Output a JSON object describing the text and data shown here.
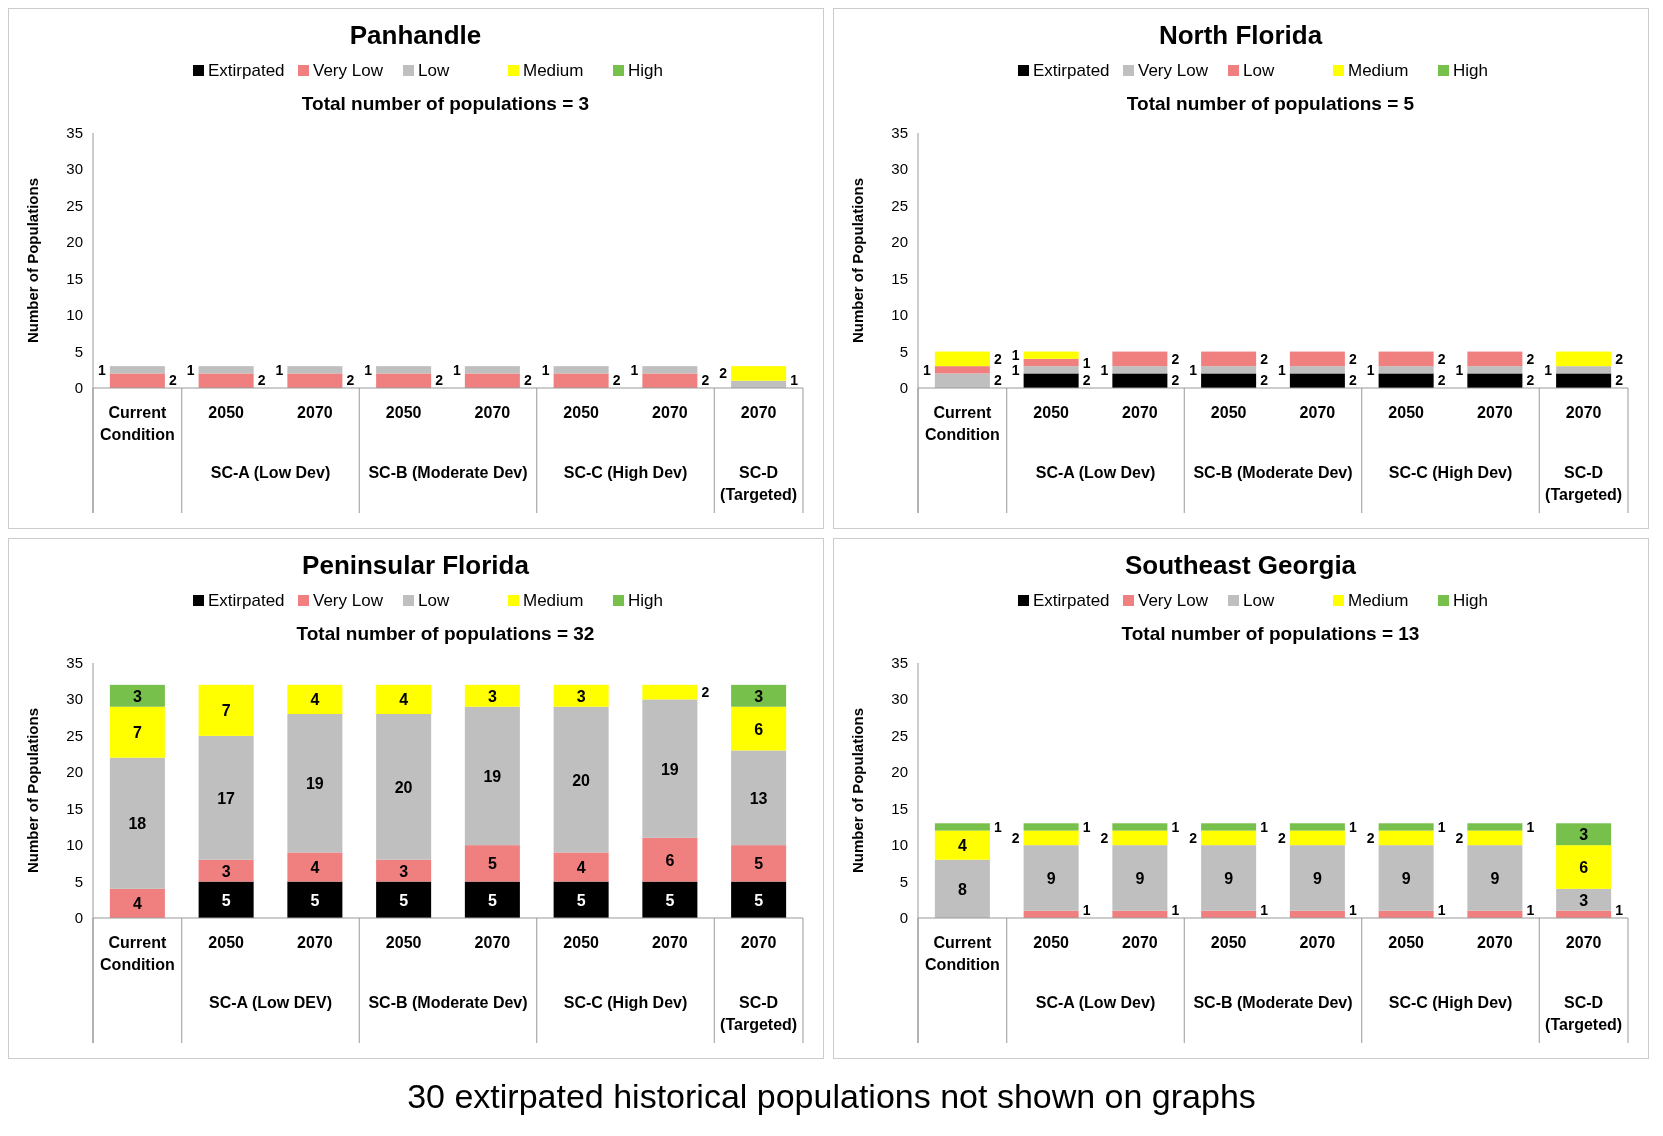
{
  "chart_data": [
    {
      "type": "bar",
      "title": "Panhandle",
      "subtitle": "Total number of populations = 3",
      "ylabel": "Number of Populations",
      "stacked": true,
      "data_labels": true,
      "legend": "top",
      "grid": false,
      "ylim": [
        0,
        35
      ],
      "yticks": [
        0,
        5,
        10,
        15,
        20,
        25,
        30,
        35
      ],
      "categories": [
        "Current Condition",
        "2050",
        "2070",
        "2050",
        "2070",
        "2050",
        "2070",
        "2070"
      ],
      "annotations": [
        "SC-A (Low Dev)",
        "SC-B (Moderate Dev)",
        "SC-C (High Dev)",
        "SC-D (Targeted)"
      ],
      "series": [
        {
          "name": "Extirpated",
          "color": "#000000",
          "values": [
            null,
            null,
            null,
            null,
            null,
            null,
            null,
            null
          ]
        },
        {
          "name": "Very Low",
          "color": "#f08080",
          "values": [
            2,
            2,
            2,
            2,
            2,
            2,
            2,
            null
          ]
        },
        {
          "name": "Low",
          "color": "#bfbfbf",
          "values": [
            1,
            1,
            1,
            1,
            1,
            1,
            1,
            1
          ]
        },
        {
          "name": "Medium",
          "color": "#ffff00",
          "values": [
            null,
            null,
            null,
            null,
            null,
            null,
            null,
            2
          ]
        },
        {
          "name": "High",
          "color": "#77c04b",
          "values": [
            null,
            null,
            null,
            null,
            null,
            null,
            null,
            null
          ]
        }
      ]
    },
    {
      "type": "bar",
      "title": "North Florida",
      "subtitle": "Total number of populations = 5",
      "ylabel": "Number of Populations",
      "stacked": true,
      "data_labels": true,
      "legend": "top",
      "grid": false,
      "ylim": [
        0,
        35
      ],
      "yticks": [
        0,
        5,
        10,
        15,
        20,
        25,
        30,
        35
      ],
      "categories": [
        "Current Condition",
        "2050",
        "2070",
        "2050",
        "2070",
        "2050",
        "2070",
        "2070"
      ],
      "annotations": [
        "SC-A (Low Dev)",
        "SC-B (Moderate Dev)",
        "SC-C (High Dev)",
        "SC-D (Targeted)"
      ],
      "series": [
        {
          "name": "Extirpated",
          "color": "#000000",
          "values": [
            null,
            2,
            2,
            2,
            2,
            2,
            2,
            2
          ]
        },
        {
          "name": "Very Low",
          "color": "#bfbfbf",
          "values": [
            2,
            1,
            1,
            1,
            1,
            1,
            1,
            1
          ]
        },
        {
          "name": "Low",
          "color": "#f08080",
          "values": [
            1,
            1,
            2,
            2,
            2,
            2,
            2,
            null
          ]
        },
        {
          "name": "Medium",
          "color": "#ffff00",
          "values": [
            2,
            1,
            null,
            null,
            null,
            null,
            null,
            2
          ]
        },
        {
          "name": "High",
          "color": "#77c04b",
          "values": [
            null,
            null,
            null,
            null,
            null,
            null,
            null,
            null
          ]
        }
      ]
    },
    {
      "type": "bar",
      "title": "Peninsular Florida",
      "subtitle": "Total number of populations = 32",
      "ylabel": "Number of Populations",
      "stacked": true,
      "data_labels": true,
      "legend": "top",
      "grid": false,
      "ylim": [
        0,
        35
      ],
      "yticks": [
        0,
        5,
        10,
        15,
        20,
        25,
        30,
        35
      ],
      "categories": [
        "Current Condition",
        "2050",
        "2070",
        "2050",
        "2070",
        "2050",
        "2070",
        "2070"
      ],
      "annotations": [
        "SC-A (Low DEV)",
        "SC-B (Moderate Dev)",
        "SC-C (High Dev)",
        "SC-D (Targeted)"
      ],
      "series": [
        {
          "name": "Extirpated",
          "color": "#000000",
          "values": [
            null,
            5,
            5,
            5,
            5,
            5,
            5,
            5
          ]
        },
        {
          "name": "Very Low",
          "color": "#f08080",
          "values": [
            4,
            3,
            4,
            3,
            5,
            4,
            6,
            5
          ]
        },
        {
          "name": "Low",
          "color": "#bfbfbf",
          "values": [
            18,
            17,
            19,
            20,
            19,
            20,
            19,
            13
          ]
        },
        {
          "name": "Medium",
          "color": "#ffff00",
          "values": [
            7,
            7,
            4,
            4,
            3,
            3,
            2,
            6
          ]
        },
        {
          "name": "High",
          "color": "#77c04b",
          "values": [
            3,
            null,
            null,
            null,
            null,
            null,
            null,
            3
          ]
        }
      ]
    },
    {
      "type": "bar",
      "title": "Southeast Georgia",
      "subtitle": "Total number of populations = 13",
      "ylabel": "Number of Populations",
      "stacked": true,
      "data_labels": true,
      "legend": "top",
      "grid": false,
      "ylim": [
        0,
        35
      ],
      "yticks": [
        0,
        5,
        10,
        15,
        20,
        25,
        30,
        35
      ],
      "categories": [
        "Current Condition",
        "2050",
        "2070",
        "2050",
        "2070",
        "2050",
        "2070",
        "2070"
      ],
      "annotations": [
        "SC-A (Low Dev)",
        "SC-B (Moderate Dev)",
        "SC-C (High Dev)",
        "SC-D (Targeted)",
        "30 extirpated historical populations not shown on graphs"
      ],
      "series": [
        {
          "name": "Extirpated",
          "color": "#000000",
          "values": [
            null,
            null,
            null,
            null,
            null,
            null,
            null,
            null
          ]
        },
        {
          "name": "Very Low",
          "color": "#f08080",
          "values": [
            null,
            1,
            1,
            1,
            1,
            1,
            1,
            1
          ]
        },
        {
          "name": "Low",
          "color": "#bfbfbf",
          "values": [
            8,
            9,
            9,
            9,
            9,
            9,
            9,
            3
          ]
        },
        {
          "name": "Medium",
          "color": "#ffff00",
          "values": [
            4,
            2,
            2,
            2,
            2,
            2,
            2,
            6
          ]
        },
        {
          "name": "High",
          "color": "#77c04b",
          "values": [
            1,
            1,
            1,
            1,
            1,
            1,
            1,
            3
          ]
        }
      ]
    }
  ]
}
